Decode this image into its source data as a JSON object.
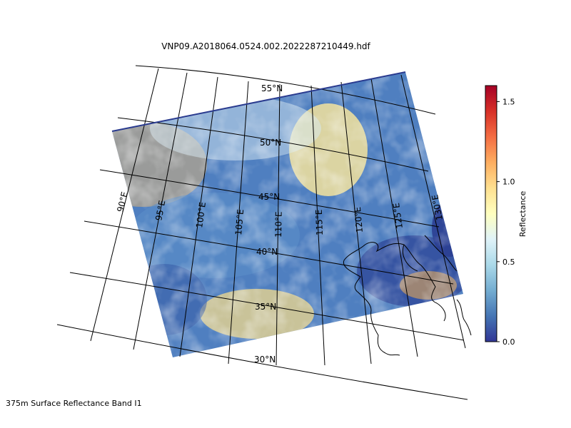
{
  "title": "VNP09.A2018064.0524.002.2022287210449.hdf",
  "footer": "375m Surface Reflectance Band I1",
  "map": {
    "projection": "conic",
    "lat_labels": [
      "55°N",
      "50°N",
      "45°N",
      "40°N",
      "35°N",
      "30°N"
    ],
    "lon_labels": [
      "90°E",
      "95°E",
      "100°E",
      "105°E",
      "110°E",
      "115°E",
      "120°E",
      "125°E",
      "130°E"
    ],
    "graticule": true,
    "coastlines": true
  },
  "colorbar": {
    "label": "Reflectance",
    "colormap": "RdYlBu_r",
    "ticks": [
      "0.0",
      "0.5",
      "1.0",
      "1.5"
    ],
    "range": [
      0.0,
      1.6
    ],
    "colors": [
      "#313695",
      "#4575b4",
      "#74add1",
      "#abd9e9",
      "#e0f3f8",
      "#ffffbf",
      "#fee090",
      "#fdae61",
      "#f46d43",
      "#d73027",
      "#a50026"
    ]
  }
}
